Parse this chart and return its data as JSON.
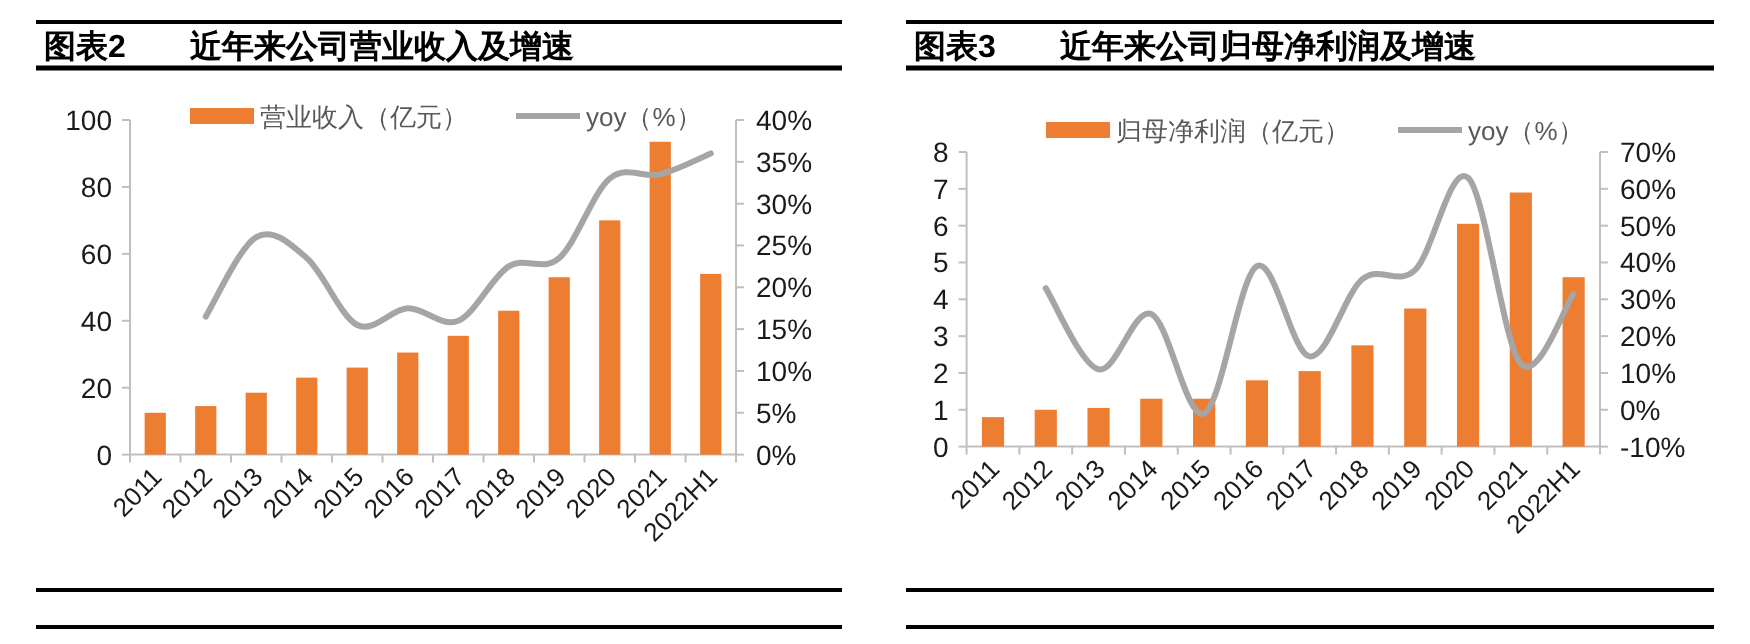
{
  "chart_data": [
    {
      "type": "bar",
      "title": "图表2　　近年来公司营业收入及增速",
      "categories": [
        "2011",
        "2012",
        "2013",
        "2014",
        "2015",
        "2016",
        "2017",
        "2018",
        "2019",
        "2020",
        "2021",
        "2022H1"
      ],
      "series": [
        {
          "name": "营业收入（亿元）",
          "color": "#ed7d31",
          "values": [
            12.5,
            14.5,
            18.5,
            23,
            26,
            30.5,
            35.5,
            43,
            53,
            70,
            93.5,
            54
          ]
        },
        {
          "name": "yoy（%）",
          "type": "line",
          "axis": "y2",
          "color": "#a5a5a5",
          "values": [
            null,
            16.5,
            26,
            23.5,
            15.5,
            17.5,
            16,
            22.5,
            23.5,
            33,
            33.5,
            36
          ]
        }
      ],
      "ylim": [
        0,
        100
      ],
      "yticks": [
        0,
        20,
        40,
        60,
        80,
        100
      ],
      "y2lim": [
        0,
        40
      ],
      "y2ticks": [
        {
          "value": 0,
          "label": "0%"
        },
        {
          "value": 5,
          "label": "5%"
        },
        {
          "value": 10,
          "label": "10%"
        },
        {
          "value": 15,
          "label": "15%"
        },
        {
          "value": 20,
          "label": "20%"
        },
        {
          "value": 25,
          "label": "25%"
        },
        {
          "value": 30,
          "label": "30%"
        },
        {
          "value": 35,
          "label": "35%"
        },
        {
          "value": 40,
          "label": "40%"
        }
      ],
      "legend": "top"
    },
    {
      "type": "bar",
      "title": "图表3　　近年来公司归母净利润及增速",
      "categories": [
        "2011",
        "2012",
        "2013",
        "2014",
        "2015",
        "2016",
        "2017",
        "2018",
        "2019",
        "2020",
        "2021",
        "2022H1"
      ],
      "series": [
        {
          "name": "归母净利润（亿元）",
          "color": "#ed7d31",
          "values": [
            0.8,
            1,
            1.05,
            1.3,
            1.3,
            1.8,
            2.05,
            2.75,
            3.75,
            6.05,
            6.9,
            4.6
          ]
        },
        {
          "name": "yoy（%）",
          "type": "line",
          "axis": "y2",
          "color": "#a5a5a5",
          "values": [
            null,
            33,
            11,
            26,
            -1,
            39,
            14.5,
            35.5,
            38,
            63,
            12.5,
            31.5
          ]
        }
      ],
      "ylim": [
        0,
        8
      ],
      "yticks": [
        0,
        1,
        2,
        3,
        4,
        5,
        6,
        7,
        8
      ],
      "y2lim": [
        -10,
        70
      ],
      "y2ticks": [
        {
          "value": -10,
          "label": "-10%"
        },
        {
          "value": 0,
          "label": "0%"
        },
        {
          "value": 10,
          "label": "10%"
        },
        {
          "value": 20,
          "label": "20%"
        },
        {
          "value": 30,
          "label": "30%"
        },
        {
          "value": 40,
          "label": "40%"
        },
        {
          "value": 50,
          "label": "50%"
        },
        {
          "value": 60,
          "label": "60%"
        },
        {
          "value": 70,
          "label": "70%"
        }
      ],
      "legend": "top"
    }
  ]
}
